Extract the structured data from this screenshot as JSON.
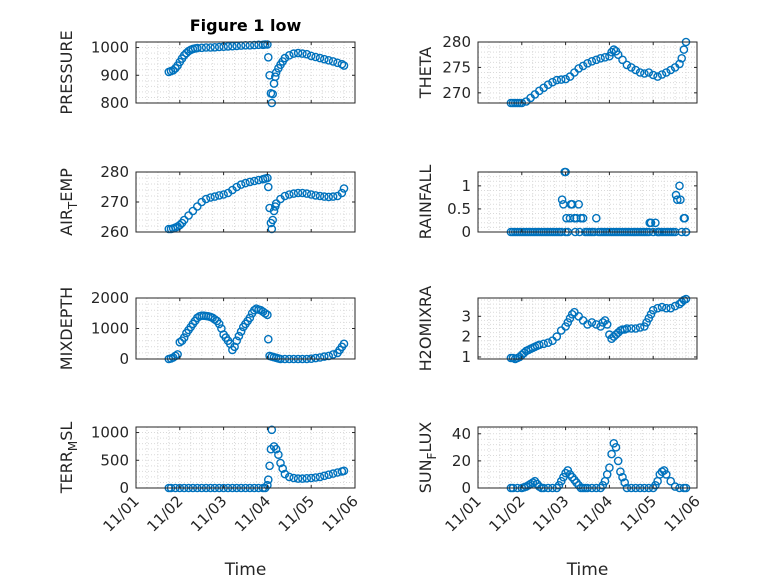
{
  "chart_data": [
    {
      "type": "scatter",
      "title": "Figure 1 low",
      "ylabel": "PRESSURE",
      "ylabel_parts": {
        "main": "PRESSURE",
        "sub": "",
        "tail": ""
      },
      "xlabel": "",
      "xlim": [
        1,
        6
      ],
      "ylim": [
        800,
        1020
      ],
      "yticks": [
        800,
        900,
        1000
      ],
      "ytick_labels": [
        "800",
        "900",
        "1000"
      ],
      "xticks": [
        1,
        2,
        3,
        4,
        5,
        6
      ],
      "xtick_labels": [],
      "grid": true,
      "color": "#0072BD",
      "marker": "circle",
      "x": [
        1.75,
        1.8,
        1.85,
        1.9,
        1.95,
        2.0,
        2.05,
        2.1,
        2.15,
        2.2,
        2.25,
        2.3,
        2.35,
        2.4,
        2.5,
        2.6,
        2.7,
        2.8,
        2.9,
        3.0,
        3.1,
        3.2,
        3.3,
        3.4,
        3.5,
        3.6,
        3.7,
        3.8,
        3.9,
        3.95,
        4.0,
        4.02,
        4.05,
        4.08,
        4.1,
        4.12,
        4.15,
        4.18,
        4.2,
        4.25,
        4.3,
        4.35,
        4.4,
        4.5,
        4.6,
        4.7,
        4.8,
        4.9,
        5.0,
        5.1,
        5.2,
        5.3,
        5.4,
        5.5,
        5.6,
        5.7,
        5.75
      ],
      "y": [
        912,
        915,
        918,
        925,
        935,
        948,
        960,
        972,
        980,
        987,
        992,
        995,
        997,
        998,
        999,
        1000,
        1000,
        1001,
        1002,
        1003,
        1004,
        1005,
        1006,
        1007,
        1008,
        1008,
        1009,
        1010,
        1010,
        1011,
        1011,
        965,
        900,
        835,
        800,
        832,
        870,
        895,
        910,
        925,
        938,
        950,
        962,
        972,
        978,
        980,
        978,
        976,
        970,
        966,
        962,
        958,
        954,
        950,
        945,
        940,
        935
      ]
    },
    {
      "type": "scatter",
      "ylabel": "THETA",
      "ylabel_parts": {
        "main": "THETA",
        "sub": "",
        "tail": ""
      },
      "xlabel": "",
      "xlim": [
        1,
        6
      ],
      "ylim": [
        268,
        280
      ],
      "yticks": [
        270,
        275,
        280
      ],
      "ytick_labels": [
        "270",
        "275",
        "280"
      ],
      "xticks": [
        1,
        2,
        3,
        4,
        5,
        6
      ],
      "xtick_labels": [],
      "grid": true,
      "color": "#0072BD",
      "marker": "circle",
      "x": [
        1.75,
        1.8,
        1.85,
        1.9,
        1.95,
        2.0,
        2.1,
        2.2,
        2.3,
        2.4,
        2.5,
        2.6,
        2.7,
        2.8,
        2.9,
        3.0,
        3.1,
        3.2,
        3.3,
        3.4,
        3.5,
        3.6,
        3.7,
        3.8,
        3.9,
        4.0,
        4.05,
        4.1,
        4.15,
        4.2,
        4.3,
        4.4,
        4.5,
        4.6,
        4.7,
        4.8,
        4.9,
        5.0,
        5.1,
        5.2,
        5.3,
        5.4,
        5.5,
        5.6,
        5.65,
        5.7,
        5.75
      ],
      "y": [
        268,
        268,
        268,
        268,
        268,
        268,
        268.3,
        269,
        269.7,
        270.4,
        271,
        271.6,
        272.1,
        272.5,
        272.6,
        272.7,
        273.2,
        274,
        274.8,
        275.3,
        275.8,
        276.2,
        276.5,
        276.8,
        277,
        277.2,
        278,
        278.5,
        278.2,
        277.5,
        276.5,
        275.5,
        275,
        274.5,
        274,
        273.8,
        274,
        273.5,
        273.2,
        273.6,
        274,
        274.5,
        275,
        275.7,
        276.8,
        278.5,
        280
      ]
    },
    {
      "type": "scatter",
      "ylabel": "AIR_TEMP",
      "ylabel_parts": {
        "main": "AIR",
        "sub": "T",
        "tail": "EMP"
      },
      "xlabel": "",
      "xlim": [
        1,
        6
      ],
      "ylim": [
        260,
        280
      ],
      "yticks": [
        260,
        270,
        280
      ],
      "ytick_labels": [
        "260",
        "270",
        "280"
      ],
      "xticks": [
        1,
        2,
        3,
        4,
        5,
        6
      ],
      "xtick_labels": [],
      "grid": true,
      "color": "#0072BD",
      "marker": "circle",
      "x": [
        1.75,
        1.8,
        1.85,
        1.9,
        1.95,
        2.0,
        2.05,
        2.1,
        2.2,
        2.3,
        2.4,
        2.5,
        2.6,
        2.7,
        2.8,
        2.9,
        3.0,
        3.1,
        3.2,
        3.3,
        3.4,
        3.5,
        3.6,
        3.7,
        3.8,
        3.9,
        3.95,
        4.0,
        4.02,
        4.05,
        4.08,
        4.1,
        4.12,
        4.15,
        4.18,
        4.2,
        4.3,
        4.4,
        4.5,
        4.6,
        4.7,
        4.8,
        4.9,
        5.0,
        5.1,
        5.2,
        5.3,
        5.4,
        5.5,
        5.6,
        5.7,
        5.75
      ],
      "y": [
        261,
        261,
        261.2,
        261.5,
        261.8,
        262.3,
        263,
        264,
        265.5,
        267,
        268.5,
        270,
        271,
        271.5,
        271.8,
        272.2,
        272.5,
        273,
        274,
        275,
        275.8,
        276.3,
        276.7,
        277,
        277.3,
        277.6,
        277.8,
        278,
        275,
        268,
        263,
        261,
        264,
        267,
        268.5,
        269.5,
        271,
        272,
        272.5,
        272.8,
        273,
        273,
        272.8,
        272.5,
        272.2,
        272,
        271.8,
        271.7,
        271.8,
        272,
        273,
        274.5
      ]
    },
    {
      "type": "scatter",
      "ylabel": "RAINFALL",
      "ylabel_parts": {
        "main": "RAINFALL",
        "sub": "",
        "tail": ""
      },
      "xlabel": "",
      "xlim": [
        1,
        6
      ],
      "ylim": [
        0,
        1.3
      ],
      "yticks": [
        0,
        0.5,
        1
      ],
      "ytick_labels": [
        "0",
        "0.5",
        "1"
      ],
      "xticks": [
        1,
        2,
        3,
        4,
        5,
        6
      ],
      "xtick_labels": [],
      "grid": true,
      "color": "#0072BD",
      "marker": "circle",
      "x": [
        1.75,
        1.8,
        1.85,
        1.9,
        1.95,
        2.0,
        2.05,
        2.1,
        2.15,
        2.2,
        2.25,
        2.3,
        2.35,
        2.4,
        2.45,
        2.5,
        2.55,
        2.6,
        2.65,
        2.7,
        2.75,
        2.8,
        2.85,
        2.9,
        2.92,
        2.95,
        2.98,
        3.0,
        3.0,
        3.02,
        3.05,
        3.1,
        3.12,
        3.15,
        3.2,
        3.22,
        3.25,
        3.3,
        3.32,
        3.35,
        3.4,
        3.45,
        3.5,
        3.55,
        3.6,
        3.65,
        3.7,
        3.75,
        3.8,
        3.85,
        3.9,
        3.95,
        4.0,
        4.05,
        4.1,
        4.15,
        4.2,
        4.25,
        4.3,
        4.35,
        4.4,
        4.45,
        4.5,
        4.55,
        4.6,
        4.65,
        4.7,
        4.75,
        4.8,
        4.85,
        4.9,
        4.92,
        4.95,
        5.0,
        5.05,
        5.1,
        5.12,
        5.15,
        5.2,
        5.25,
        5.3,
        5.35,
        5.4,
        5.45,
        5.5,
        5.52,
        5.55,
        5.6,
        5.62,
        5.65,
        5.7,
        5.72,
        5.75,
        5.75
      ],
      "y": [
        0,
        0,
        0,
        0,
        0,
        0,
        0,
        0,
        0,
        0,
        0,
        0,
        0,
        0,
        0,
        0,
        0,
        0,
        0,
        0,
        0,
        0,
        0,
        0,
        0.7,
        0.6,
        1.3,
        1.3,
        0,
        0.3,
        0,
        0.3,
        0.6,
        0.6,
        0.3,
        0,
        0.3,
        0.6,
        0,
        0.3,
        0.3,
        0,
        0,
        0,
        0,
        0,
        0.3,
        0,
        0,
        0,
        0,
        0,
        0,
        0,
        0,
        0,
        0,
        0,
        0,
        0,
        0,
        0,
        0,
        0,
        0,
        0,
        0,
        0,
        0,
        0,
        0,
        0.2,
        0.2,
        0,
        0.2,
        0,
        0,
        0,
        0,
        0,
        0,
        0,
        0,
        0,
        0,
        0.8,
        0.7,
        1.0,
        0.7,
        0,
        0.3,
        0.3,
        0,
        0
      ]
    },
    {
      "type": "scatter",
      "ylabel": "MIXDEPTH",
      "ylabel_parts": {
        "main": "MIXDEPTH",
        "sub": "",
        "tail": ""
      },
      "xlabel": "",
      "xlim": [
        1,
        6
      ],
      "ylim": [
        0,
        2000
      ],
      "yticks": [
        0,
        1000,
        2000
      ],
      "ytick_labels": [
        "0",
        "1000",
        "2000"
      ],
      "xticks": [
        1,
        2,
        3,
        4,
        5,
        6
      ],
      "xtick_labels": [],
      "grid": true,
      "color": "#0072BD",
      "marker": "circle",
      "x": [
        1.75,
        1.8,
        1.85,
        1.9,
        1.95,
        2.0,
        2.05,
        2.1,
        2.15,
        2.2,
        2.25,
        2.3,
        2.35,
        2.4,
        2.45,
        2.5,
        2.55,
        2.6,
        2.65,
        2.7,
        2.75,
        2.8,
        2.85,
        2.9,
        2.95,
        3.0,
        3.05,
        3.1,
        3.15,
        3.2,
        3.25,
        3.3,
        3.35,
        3.4,
        3.45,
        3.5,
        3.55,
        3.6,
        3.65,
        3.7,
        3.75,
        3.8,
        3.85,
        3.9,
        3.95,
        4.0,
        4.02,
        4.05,
        4.1,
        4.15,
        4.2,
        4.25,
        4.3,
        4.4,
        4.5,
        4.6,
        4.7,
        4.8,
        4.9,
        5.0,
        5.1,
        5.2,
        5.3,
        5.4,
        5.5,
        5.6,
        5.65,
        5.7,
        5.75
      ],
      "y": [
        0,
        20,
        50,
        100,
        150,
        550,
        600,
        700,
        850,
        950,
        1050,
        1150,
        1250,
        1350,
        1400,
        1420,
        1420,
        1410,
        1400,
        1380,
        1350,
        1300,
        1250,
        1150,
        1000,
        800,
        700,
        600,
        500,
        300,
        400,
        600,
        750,
        900,
        1050,
        1150,
        1250,
        1350,
        1500,
        1600,
        1650,
        1620,
        1600,
        1550,
        1500,
        1450,
        650,
        100,
        80,
        60,
        40,
        20,
        0,
        0,
        0,
        0,
        0,
        0,
        0,
        10,
        30,
        50,
        80,
        100,
        150,
        200,
        300,
        400,
        500
      ]
    },
    {
      "type": "scatter",
      "ylabel": "H2OMIXRA",
      "ylabel_parts": {
        "main": "H2OMIXRA",
        "sub": "",
        "tail": ""
      },
      "xlabel": "",
      "xlim": [
        1,
        6
      ],
      "ylim": [
        0.9,
        3.9
      ],
      "yticks": [
        1,
        2,
        3
      ],
      "ytick_labels": [
        "1",
        "2",
        "3"
      ],
      "xticks": [
        1,
        2,
        3,
        4,
        5,
        6
      ],
      "xtick_labels": [],
      "grid": true,
      "color": "#0072BD",
      "marker": "circle",
      "x": [
        1.75,
        1.8,
        1.85,
        1.9,
        1.95,
        2.0,
        2.05,
        2.1,
        2.15,
        2.2,
        2.25,
        2.3,
        2.35,
        2.4,
        2.5,
        2.6,
        2.7,
        2.8,
        2.9,
        3.0,
        3.05,
        3.1,
        3.15,
        3.2,
        3.3,
        3.4,
        3.5,
        3.6,
        3.7,
        3.8,
        3.85,
        3.9,
        3.95,
        4.0,
        4.05,
        4.1,
        4.15,
        4.2,
        4.25,
        4.3,
        4.35,
        4.4,
        4.5,
        4.6,
        4.7,
        4.8,
        4.85,
        4.9,
        4.95,
        5.0,
        5.1,
        5.2,
        5.3,
        5.4,
        5.5,
        5.6,
        5.65,
        5.7,
        5.75
      ],
      "y": [
        0.95,
        0.95,
        0.9,
        0.95,
        1.0,
        1.1,
        1.2,
        1.3,
        1.35,
        1.4,
        1.45,
        1.5,
        1.55,
        1.6,
        1.65,
        1.7,
        1.8,
        2.0,
        2.3,
        2.5,
        2.7,
        2.9,
        3.1,
        3.2,
        3.0,
        2.8,
        2.6,
        2.7,
        2.6,
        2.5,
        2.7,
        2.8,
        2.6,
        2.1,
        1.9,
        2.0,
        2.1,
        2.2,
        2.3,
        2.35,
        2.35,
        2.4,
        2.4,
        2.4,
        2.45,
        2.5,
        2.7,
        2.9,
        3.1,
        3.3,
        3.4,
        3.45,
        3.4,
        3.4,
        3.5,
        3.6,
        3.7,
        3.8,
        3.85
      ]
    },
    {
      "type": "scatter",
      "ylabel": "TERR_MSL",
      "ylabel_parts": {
        "main": "TERR",
        "sub": "M",
        "tail": "SL"
      },
      "xlabel": "Time",
      "xlim": [
        1,
        6
      ],
      "ylim": [
        0,
        1100
      ],
      "yticks": [
        0,
        500,
        1000
      ],
      "ytick_labels": [
        "0",
        "500",
        "1000"
      ],
      "xticks": [
        1,
        2,
        3,
        4,
        5,
        6
      ],
      "xtick_labels": [
        "11/01",
        "11/02",
        "11/03",
        "11/04",
        "11/05",
        "11/06"
      ],
      "grid": true,
      "color": "#0072BD",
      "marker": "circle",
      "x": [
        1.75,
        1.8,
        1.9,
        2.0,
        2.1,
        2.2,
        2.3,
        2.4,
        2.5,
        2.6,
        2.7,
        2.8,
        2.9,
        3.0,
        3.1,
        3.2,
        3.3,
        3.4,
        3.5,
        3.6,
        3.7,
        3.8,
        3.9,
        3.95,
        4.0,
        4.02,
        4.05,
        4.08,
        4.1,
        4.15,
        4.2,
        4.25,
        4.3,
        4.35,
        4.4,
        4.5,
        4.6,
        4.7,
        4.8,
        4.9,
        5.0,
        5.1,
        5.2,
        5.3,
        5.4,
        5.5,
        5.6,
        5.7,
        5.75
      ],
      "y": [
        0,
        0,
        0,
        0,
        0,
        0,
        0,
        0,
        0,
        0,
        0,
        0,
        0,
        0,
        0,
        0,
        0,
        0,
        0,
        0,
        0,
        0,
        0,
        0,
        50,
        150,
        400,
        700,
        1050,
        750,
        700,
        600,
        450,
        350,
        250,
        200,
        180,
        170,
        170,
        175,
        180,
        190,
        200,
        220,
        240,
        260,
        280,
        300,
        310
      ]
    },
    {
      "type": "scatter",
      "ylabel": "SUN_FLUX",
      "ylabel_parts": {
        "main": "SUN",
        "sub": "F",
        "tail": "LUX"
      },
      "xlabel": "Time",
      "xlim": [
        1,
        6
      ],
      "ylim": [
        0,
        45
      ],
      "yticks": [
        0,
        20,
        40
      ],
      "ytick_labels": [
        "0",
        "20",
        "40"
      ],
      "xticks": [
        1,
        2,
        3,
        4,
        5,
        6
      ],
      "xtick_labels": [
        "11/01",
        "11/02",
        "11/03",
        "11/04",
        "11/05",
        "11/06"
      ],
      "grid": true,
      "color": "#0072BD",
      "marker": "circle",
      "x": [
        1.75,
        1.8,
        1.9,
        2.0,
        2.05,
        2.1,
        2.15,
        2.2,
        2.25,
        2.3,
        2.35,
        2.4,
        2.45,
        2.5,
        2.6,
        2.7,
        2.8,
        2.85,
        2.9,
        2.95,
        3.0,
        3.05,
        3.1,
        3.15,
        3.2,
        3.25,
        3.3,
        3.35,
        3.4,
        3.45,
        3.5,
        3.6,
        3.7,
        3.8,
        3.85,
        3.9,
        3.95,
        4.0,
        4.05,
        4.1,
        4.15,
        4.2,
        4.25,
        4.3,
        4.35,
        4.4,
        4.5,
        4.6,
        4.7,
        4.8,
        4.9,
        5.0,
        5.05,
        5.1,
        5.15,
        5.2,
        5.25,
        5.3,
        5.4,
        5.5,
        5.6,
        5.7,
        5.75
      ],
      "y": [
        0,
        0,
        0,
        0,
        0.5,
        1,
        2,
        3,
        4,
        5,
        3,
        1,
        0,
        0,
        0,
        0,
        0,
        2,
        5,
        8,
        11,
        13,
        10,
        8,
        6,
        4,
        2,
        0,
        0,
        0,
        0,
        0,
        0,
        0,
        2,
        5,
        10,
        15,
        25,
        33,
        30,
        20,
        12,
        8,
        4,
        0,
        0,
        0,
        0,
        0,
        0,
        0,
        2,
        5,
        10,
        12,
        13,
        10,
        5,
        1,
        0,
        0,
        0
      ]
    }
  ]
}
